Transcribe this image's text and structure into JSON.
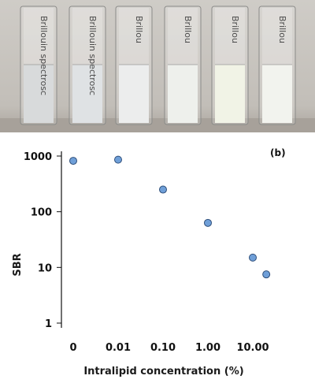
{
  "photo": {
    "vial_labels": [
      "Brillouin spectrosc",
      "Brillouin spectrosc",
      "Brillou",
      "Brillou",
      "Brillou",
      "Brillou"
    ],
    "vial_fill_colors": [
      "#d8dadb",
      "#dfe2e4",
      "#eceded",
      "#eef0ec",
      "#f1f3e6",
      "#f2f3ee"
    ],
    "background_color": "#c5c2bd",
    "bench_color": "#a7a19a"
  },
  "chart_data": {
    "type": "scatter",
    "panel_label": "(b)",
    "xlabel": "Intralipid concentration (%)",
    "ylabel": "SBR",
    "yscale": "log",
    "ylim": [
      1,
      1000
    ],
    "y_ticks": [
      1,
      10,
      100,
      1000
    ],
    "y_tick_labels": [
      "1",
      "10",
      "100",
      "1000"
    ],
    "x_ticks": [
      0,
      0.01,
      0.1,
      1,
      10
    ],
    "x_tick_labels": [
      "0",
      "0.01",
      "0.10",
      "1.00",
      "10.00"
    ],
    "grid": false,
    "legend": "none",
    "marker_color": "#6f9fd8",
    "points": [
      {
        "x": 0,
        "y": 820
      },
      {
        "x": 0.01,
        "y": 860
      },
      {
        "x": 0.1,
        "y": 250
      },
      {
        "x": 1,
        "y": 63
      },
      {
        "x": 10,
        "y": 15
      },
      {
        "x": 20,
        "y": 7.5
      }
    ]
  }
}
